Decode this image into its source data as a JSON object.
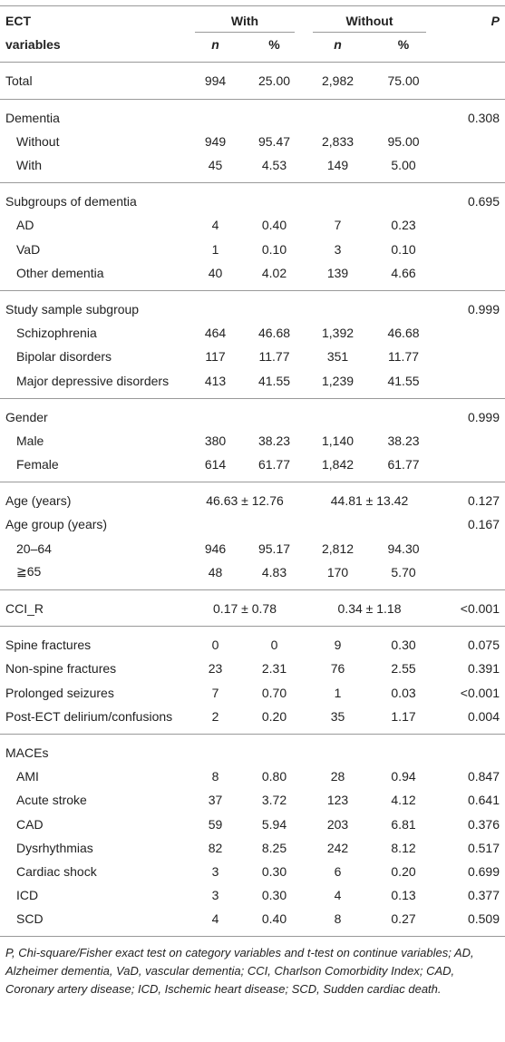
{
  "table": {
    "header": {
      "variable_line1": "ECT",
      "variable_line2": "variables",
      "groups": [
        "With",
        "Without"
      ],
      "subcols": [
        "n",
        "%",
        "n",
        "%"
      ],
      "p": "P"
    },
    "sections": [
      {
        "rows": [
          {
            "label": "Total",
            "cells": [
              "994",
              "25.00",
              "2,982",
              "75.00"
            ]
          }
        ]
      },
      {
        "rows": [
          {
            "label": "Dementia",
            "cells": [],
            "p": "0.308"
          },
          {
            "label": "Without",
            "indent": true,
            "cells": [
              "949",
              "95.47",
              "2,833",
              "95.00"
            ]
          },
          {
            "label": "With",
            "indent": true,
            "cells": [
              "45",
              "4.53",
              "149",
              "5.00"
            ]
          }
        ]
      },
      {
        "rows": [
          {
            "label": "Subgroups of dementia",
            "cells": [],
            "p": "0.695"
          },
          {
            "label": "AD",
            "indent": true,
            "cells": [
              "4",
              "0.40",
              "7",
              "0.23"
            ]
          },
          {
            "label": "VaD",
            "indent": true,
            "cells": [
              "1",
              "0.10",
              "3",
              "0.10"
            ]
          },
          {
            "label": "Other dementia",
            "indent": true,
            "cells": [
              "40",
              "4.02",
              "139",
              "4.66"
            ]
          }
        ]
      },
      {
        "rows": [
          {
            "label": "Study sample subgroup",
            "cells": [],
            "p": "0.999"
          },
          {
            "label": "Schizophrenia",
            "indent": true,
            "cells": [
              "464",
              "46.68",
              "1,392",
              "46.68"
            ]
          },
          {
            "label": "Bipolar disorders",
            "indent": true,
            "cells": [
              "117",
              "11.77",
              "351",
              "11.77"
            ]
          },
          {
            "label": "Major depressive disorders",
            "indent": true,
            "cells": [
              "413",
              "41.55",
              "1,239",
              "41.55"
            ]
          }
        ]
      },
      {
        "rows": [
          {
            "label": "Gender",
            "cells": [],
            "p": "0.999"
          },
          {
            "label": "Male",
            "indent": true,
            "cells": [
              "380",
              "38.23",
              "1,140",
              "38.23"
            ]
          },
          {
            "label": "Female",
            "indent": true,
            "cells": [
              "614",
              "61.77",
              "1,842",
              "61.77"
            ]
          }
        ]
      },
      {
        "rows": [
          {
            "label": "Age (years)",
            "cells": [
              "46.63 ± 12.76",
              "44.81 ± 13.42"
            ],
            "p": "0.127"
          },
          {
            "label": "Age group (years)",
            "cells": [],
            "p": "0.167"
          },
          {
            "label": "20–64",
            "indent": true,
            "cells": [
              "946",
              "95.17",
              "2,812",
              "94.30"
            ]
          },
          {
            "label": "≧65",
            "indent": true,
            "cells": [
              "48",
              "4.83",
              "170",
              "5.70"
            ]
          }
        ]
      },
      {
        "rows": [
          {
            "label": "CCI_R",
            "cells": [
              "0.17 ± 0.78",
              "0.34 ± 1.18"
            ],
            "p": "<0.001"
          }
        ]
      },
      {
        "rows": [
          {
            "label": "Spine fractures",
            "cells": [
              "0",
              "0",
              "9",
              "0.30"
            ],
            "p": "0.075"
          },
          {
            "label": "Non-spine fractures",
            "cells": [
              "23",
              "2.31",
              "76",
              "2.55"
            ],
            "p": "0.391"
          },
          {
            "label": "Prolonged seizures",
            "cells": [
              "7",
              "0.70",
              "1",
              "0.03"
            ],
            "p": "<0.001"
          },
          {
            "label": "Post-ECT delirium/confusions",
            "cells": [
              "2",
              "0.20",
              "35",
              "1.17"
            ],
            "p": "0.004"
          }
        ]
      },
      {
        "rows": [
          {
            "label": "MACEs",
            "cells": []
          },
          {
            "label": "AMI",
            "indent": true,
            "cells": [
              "8",
              "0.80",
              "28",
              "0.94"
            ],
            "p": "0.847"
          },
          {
            "label": "Acute stroke",
            "indent": true,
            "cells": [
              "37",
              "3.72",
              "123",
              "4.12"
            ],
            "p": "0.641"
          },
          {
            "label": "CAD",
            "indent": true,
            "cells": [
              "59",
              "5.94",
              "203",
              "6.81"
            ],
            "p": "0.376"
          },
          {
            "label": "Dysrhythmias",
            "indent": true,
            "cells": [
              "82",
              "8.25",
              "242",
              "8.12"
            ],
            "p": "0.517"
          },
          {
            "label": "Cardiac shock",
            "indent": true,
            "cells": [
              "3",
              "0.30",
              "6",
              "0.20"
            ],
            "p": "0.699"
          },
          {
            "label": "ICD",
            "indent": true,
            "cells": [
              "3",
              "0.30",
              "4",
              "0.13"
            ],
            "p": "0.377"
          },
          {
            "label": "SCD",
            "indent": true,
            "cells": [
              "4",
              "0.40",
              "8",
              "0.27"
            ],
            "p": "0.509"
          }
        ]
      }
    ],
    "footnote": "P, Chi-square/Fisher exact test on category variables and t-test on continue variables; AD, Alzheimer dementia, VaD, vascular dementia; CCI, Charlson Comorbidity Index; CAD, Coronary artery disease; ICD, Ischemic heart disease; SCD, Sudden cardiac death."
  }
}
